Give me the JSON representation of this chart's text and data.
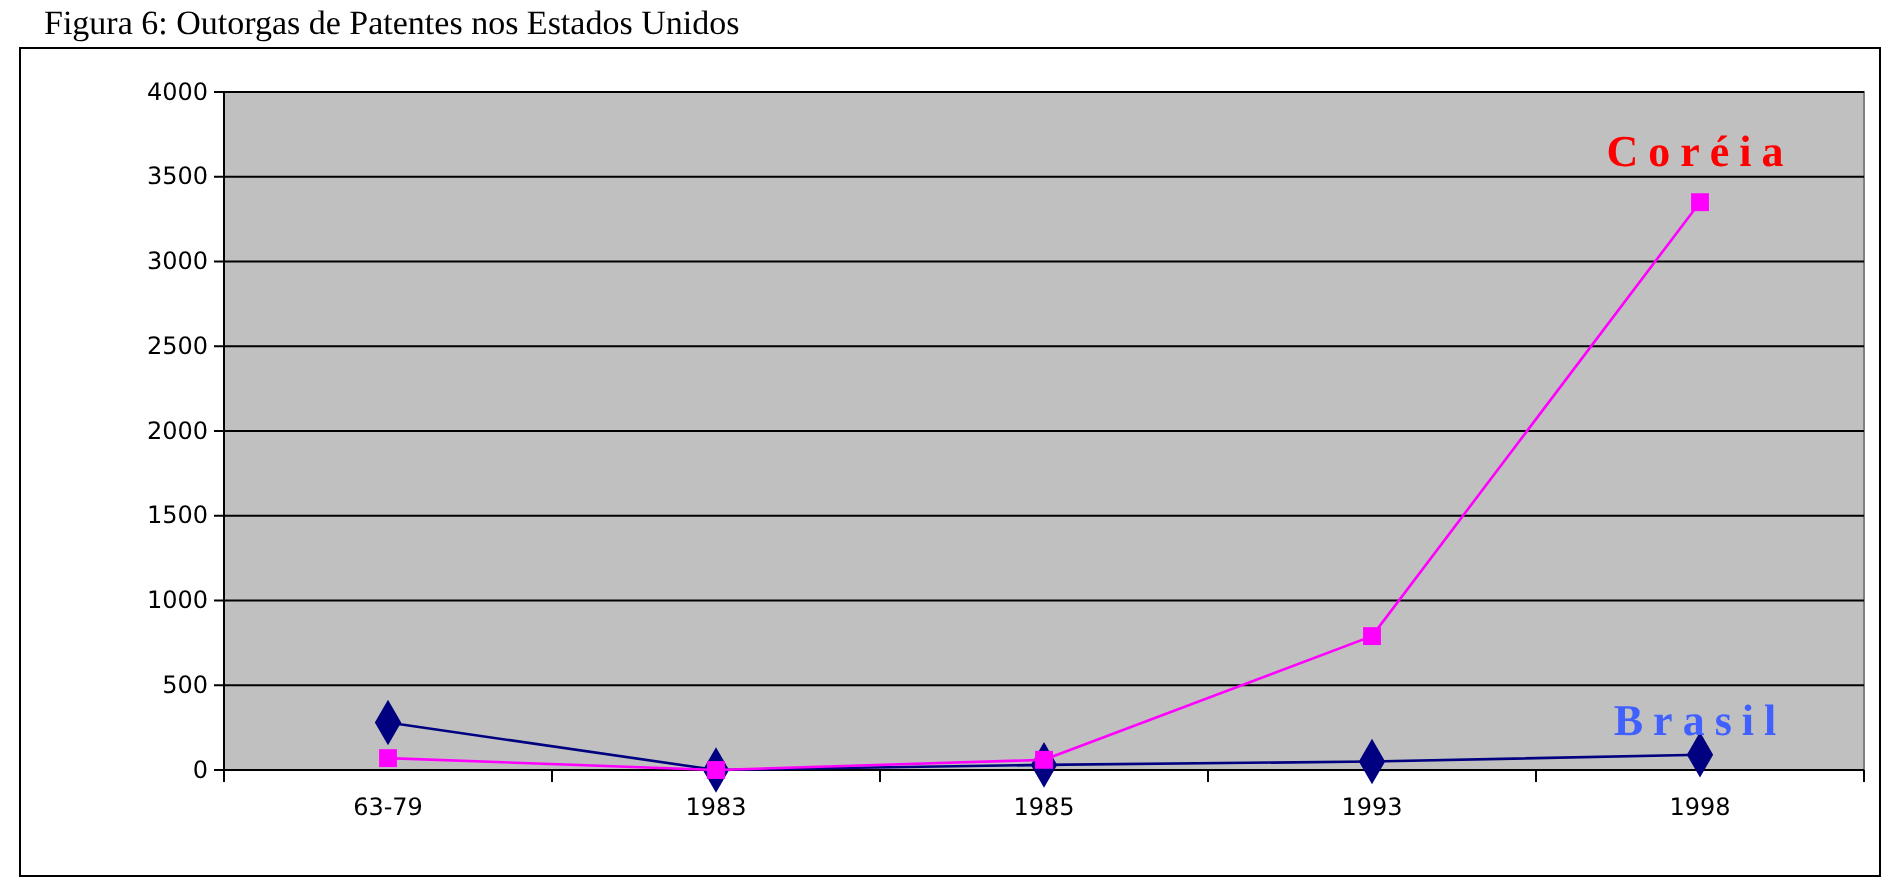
{
  "chart_data": {
    "type": "line",
    "title": "Figura 6: Outorgas de Patentes nos Estados Unidos",
    "categories": [
      "63-79",
      "1983",
      "1985",
      "1993",
      "1998"
    ],
    "series": [
      {
        "name": "Brasil",
        "color": "#000080",
        "marker": "diamond",
        "values": [
          280,
          0,
          30,
          50,
          90
        ]
      },
      {
        "name": "Coréia",
        "color": "#ff00ff",
        "marker": "square",
        "values": [
          70,
          0,
          60,
          790,
          3350
        ]
      }
    ],
    "ylim": [
      0,
      4000
    ],
    "yticks": [
      0,
      500,
      1000,
      1500,
      2000,
      2500,
      3000,
      3500,
      4000
    ],
    "grid": "y",
    "legend": false
  }
}
